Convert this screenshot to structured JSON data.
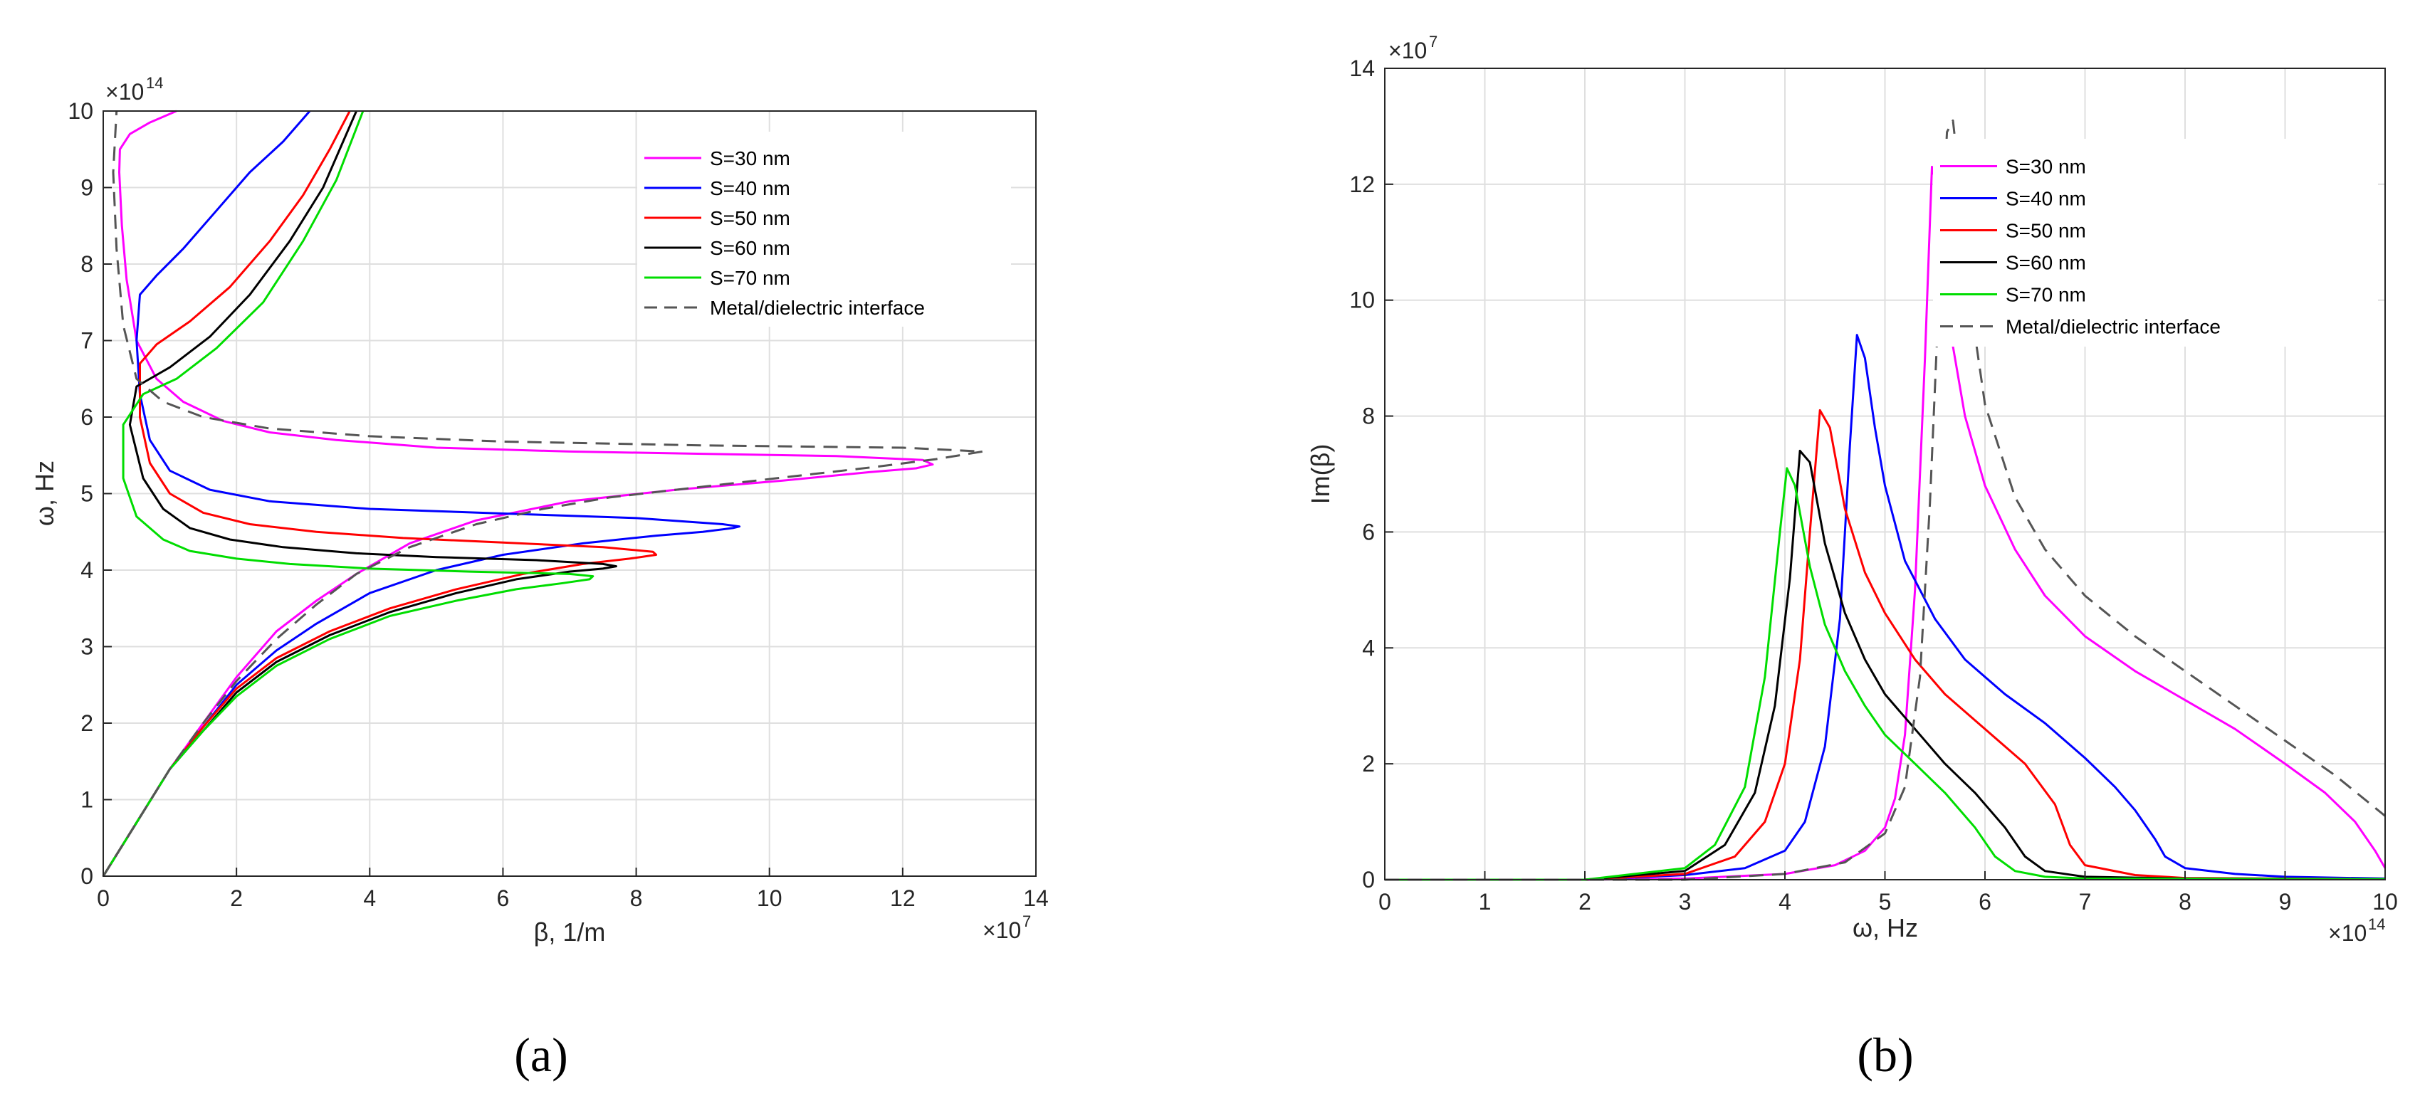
{
  "chart_data": [
    {
      "type": "line",
      "panel_label": "(a)",
      "xlabel": "β, 1/m",
      "ylabel": "ω, Hz",
      "x_exponent": "×10^7",
      "y_exponent": "×10^14",
      "xlim": [
        0,
        14
      ],
      "ylim": [
        0,
        10
      ],
      "xticks": [
        "0",
        "2",
        "4",
        "6",
        "8",
        "10",
        "12",
        "14"
      ],
      "yticks": [
        "0",
        "1",
        "2",
        "3",
        "4",
        "5",
        "6",
        "7",
        "8",
        "9",
        "10"
      ],
      "grid": true,
      "legend_position": "top-right",
      "series": [
        {
          "name": "S=30 nm",
          "color": "#ff00ff",
          "style": "solid",
          "x": [
            0,
            0.5,
            1.0,
            1.5,
            2.0,
            2.6,
            3.2,
            3.8,
            4.6,
            5.6,
            7.0,
            8.6,
            10.2,
            11.5,
            12.2,
            12.45,
            12.3,
            11.0,
            9.0,
            7.0,
            5.0,
            3.5,
            2.5,
            1.8,
            1.2,
            0.8,
            0.5,
            0.35,
            0.28,
            0.24,
            0.25,
            0.4,
            0.7,
            1.1
          ],
          "y": [
            0,
            0.7,
            1.4,
            2.0,
            2.6,
            3.2,
            3.6,
            3.95,
            4.35,
            4.65,
            4.9,
            5.05,
            5.17,
            5.28,
            5.33,
            5.38,
            5.44,
            5.49,
            5.52,
            5.55,
            5.6,
            5.7,
            5.8,
            5.95,
            6.2,
            6.5,
            7.0,
            7.8,
            8.5,
            9.2,
            9.5,
            9.7,
            9.85,
            10
          ]
        },
        {
          "name": "S=40 nm",
          "color": "#0000ff",
          "style": "solid",
          "x": [
            0,
            0.5,
            1.0,
            1.5,
            2.0,
            2.6,
            3.2,
            4.0,
            5.0,
            6.0,
            7.2,
            8.3,
            9.0,
            9.45,
            9.55,
            9.3,
            8.0,
            6.0,
            4.0,
            2.5,
            1.6,
            1.0,
            0.7,
            0.55,
            0.5,
            0.55,
            0.8,
            1.2,
            1.7,
            2.2,
            2.7,
            3.1
          ],
          "y": [
            0,
            0.7,
            1.4,
            1.95,
            2.5,
            2.95,
            3.3,
            3.7,
            4.0,
            4.2,
            4.35,
            4.45,
            4.5,
            4.55,
            4.57,
            4.6,
            4.68,
            4.74,
            4.8,
            4.9,
            5.05,
            5.3,
            5.7,
            6.3,
            7.0,
            7.6,
            7.85,
            8.2,
            8.7,
            9.2,
            9.6,
            10
          ]
        },
        {
          "name": "S=50 nm",
          "color": "#ff0000",
          "style": "solid",
          "x": [
            0,
            0.5,
            1.0,
            1.5,
            2.0,
            2.6,
            3.4,
            4.3,
            5.3,
            6.3,
            7.2,
            7.9,
            8.3,
            8.25,
            7.5,
            6.0,
            4.5,
            3.2,
            2.2,
            1.5,
            1.0,
            0.7,
            0.55,
            0.55,
            0.8,
            1.3,
            1.9,
            2.5,
            3.0,
            3.4,
            3.7
          ],
          "y": [
            0,
            0.7,
            1.4,
            1.95,
            2.45,
            2.85,
            3.2,
            3.5,
            3.75,
            3.95,
            4.08,
            4.15,
            4.2,
            4.24,
            4.3,
            4.36,
            4.42,
            4.5,
            4.6,
            4.75,
            5.0,
            5.4,
            6.0,
            6.7,
            6.95,
            7.25,
            7.7,
            8.3,
            8.9,
            9.5,
            10
          ]
        },
        {
          "name": "S=60 nm",
          "color": "#000000",
          "style": "solid",
          "x": [
            0,
            0.5,
            1.0,
            1.5,
            2.0,
            2.6,
            3.4,
            4.3,
            5.3,
            6.2,
            7.0,
            7.5,
            7.7,
            7.5,
            6.5,
            5.0,
            3.8,
            2.7,
            1.9,
            1.3,
            0.9,
            0.6,
            0.4,
            0.5,
            1.0,
            1.6,
            2.2,
            2.8,
            3.3,
            3.8
          ],
          "y": [
            0,
            0.7,
            1.4,
            1.9,
            2.4,
            2.8,
            3.15,
            3.45,
            3.7,
            3.88,
            3.98,
            4.02,
            4.05,
            4.08,
            4.13,
            4.17,
            4.22,
            4.3,
            4.4,
            4.55,
            4.8,
            5.2,
            5.9,
            6.4,
            6.65,
            7.05,
            7.6,
            8.3,
            9.0,
            10
          ]
        },
        {
          "name": "S=70 nm",
          "color": "#00dd00",
          "style": "solid",
          "x": [
            0,
            0.5,
            1.0,
            1.5,
            2.0,
            2.6,
            3.4,
            4.3,
            5.3,
            6.2,
            6.9,
            7.3,
            7.35,
            7.0,
            5.5,
            4.0,
            2.8,
            2.0,
            1.3,
            0.9,
            0.5,
            0.3,
            0.3,
            0.6,
            1.1,
            1.7,
            2.4,
            3.0,
            3.5,
            3.9
          ],
          "y": [
            0,
            0.7,
            1.4,
            1.9,
            2.35,
            2.75,
            3.1,
            3.4,
            3.6,
            3.75,
            3.83,
            3.88,
            3.92,
            3.95,
            3.98,
            4.02,
            4.08,
            4.15,
            4.25,
            4.4,
            4.7,
            5.2,
            5.9,
            6.3,
            6.5,
            6.9,
            7.5,
            8.3,
            9.1,
            10
          ]
        },
        {
          "name": "Metal/dielectric interface",
          "color": "#555555",
          "style": "dashed",
          "x": [
            0,
            0.5,
            1.0,
            1.5,
            2.0,
            2.6,
            3.2,
            3.8,
            4.6,
            5.6,
            6.6,
            7.6,
            8.6,
            9.6,
            10.6,
            11.6,
            12.5,
            13.2,
            12.0,
            9.0,
            6.0,
            4.0,
            2.5,
            1.5,
            0.9,
            0.5,
            0.3,
            0.2,
            0.15,
            0.2
          ],
          "y": [
            0,
            0.7,
            1.4,
            2.0,
            2.55,
            3.1,
            3.55,
            3.95,
            4.3,
            4.6,
            4.8,
            4.95,
            5.05,
            5.15,
            5.25,
            5.35,
            5.45,
            5.55,
            5.6,
            5.63,
            5.68,
            5.75,
            5.85,
            6.0,
            6.2,
            6.5,
            7.2,
            8.2,
            9.2,
            10
          ]
        }
      ]
    },
    {
      "type": "line",
      "panel_label": "(b)",
      "xlabel": "ω, Hz",
      "ylabel": "Im(β)",
      "x_exponent": "×10^14",
      "y_exponent": "×10^7",
      "xlim": [
        0,
        10
      ],
      "ylim": [
        0,
        14
      ],
      "xticks": [
        "0",
        "1",
        "2",
        "3",
        "4",
        "5",
        "6",
        "7",
        "8",
        "9",
        "10"
      ],
      "yticks": [
        "0",
        "2",
        "4",
        "6",
        "8",
        "10",
        "12",
        "14"
      ],
      "grid": true,
      "legend_position": "top-right",
      "series": [
        {
          "name": "S=30 nm",
          "color": "#ff00ff",
          "style": "solid",
          "x": [
            0,
            2.0,
            3.0,
            4.0,
            4.5,
            4.8,
            5.0,
            5.1,
            5.2,
            5.3,
            5.4,
            5.47,
            5.5,
            5.6,
            5.8,
            6.0,
            6.3,
            6.6,
            7.0,
            7.5,
            8.0,
            8.5,
            9.0,
            9.4,
            9.7,
            9.9,
            10.0
          ],
          "y": [
            0,
            0,
            0.02,
            0.1,
            0.25,
            0.5,
            0.9,
            1.4,
            2.5,
            5.0,
            9.0,
            12.3,
            12.1,
            10.0,
            8.0,
            6.8,
            5.7,
            4.9,
            4.2,
            3.6,
            3.1,
            2.6,
            2.0,
            1.5,
            1.0,
            0.5,
            0.2
          ]
        },
        {
          "name": "S=40 nm",
          "color": "#0000ff",
          "style": "solid",
          "x": [
            0,
            2.0,
            3.0,
            3.6,
            4.0,
            4.2,
            4.4,
            4.55,
            4.65,
            4.72,
            4.8,
            4.9,
            5.0,
            5.2,
            5.5,
            5.8,
            6.2,
            6.6,
            7.0,
            7.3,
            7.5,
            7.7,
            7.8,
            8.0,
            8.5,
            9.0,
            10.0
          ],
          "y": [
            0,
            0,
            0.08,
            0.2,
            0.5,
            1.0,
            2.3,
            4.5,
            7.5,
            9.4,
            9.0,
            7.8,
            6.8,
            5.5,
            4.5,
            3.8,
            3.2,
            2.7,
            2.1,
            1.6,
            1.2,
            0.7,
            0.4,
            0.2,
            0.1,
            0.05,
            0.02
          ]
        },
        {
          "name": "S=50 nm",
          "color": "#ff0000",
          "style": "solid",
          "x": [
            0,
            2.0,
            3.0,
            3.5,
            3.8,
            4.0,
            4.15,
            4.25,
            4.35,
            4.45,
            4.6,
            4.8,
            5.0,
            5.3,
            5.6,
            6.0,
            6.4,
            6.7,
            6.85,
            7.0,
            7.5,
            8.0,
            10.0
          ],
          "y": [
            0,
            0,
            0.1,
            0.4,
            1.0,
            2.0,
            3.8,
            6.0,
            8.1,
            7.8,
            6.4,
            5.3,
            4.6,
            3.8,
            3.2,
            2.6,
            2.0,
            1.3,
            0.6,
            0.25,
            0.08,
            0.03,
            0.01
          ]
        },
        {
          "name": "S=60 nm",
          "color": "#000000",
          "style": "solid",
          "x": [
            0,
            2.0,
            3.0,
            3.4,
            3.7,
            3.9,
            4.05,
            4.15,
            4.25,
            4.4,
            4.6,
            4.8,
            5.0,
            5.3,
            5.6,
            5.9,
            6.2,
            6.4,
            6.6,
            7.0,
            8.0,
            10.0
          ],
          "y": [
            0,
            0,
            0.15,
            0.6,
            1.5,
            3.0,
            5.2,
            7.4,
            7.2,
            5.8,
            4.6,
            3.8,
            3.2,
            2.6,
            2.0,
            1.5,
            0.9,
            0.4,
            0.15,
            0.05,
            0.02,
            0.01
          ]
        },
        {
          "name": "S=70 nm",
          "color": "#00dd00",
          "style": "solid",
          "x": [
            0,
            2.0,
            3.0,
            3.3,
            3.6,
            3.8,
            3.95,
            4.02,
            4.1,
            4.25,
            4.4,
            4.6,
            4.8,
            5.0,
            5.3,
            5.6,
            5.9,
            6.1,
            6.3,
            6.6,
            7.0,
            10.0
          ],
          "y": [
            0,
            0,
            0.2,
            0.6,
            1.6,
            3.5,
            6.0,
            7.1,
            6.8,
            5.4,
            4.4,
            3.6,
            3.0,
            2.5,
            2.0,
            1.5,
            0.9,
            0.4,
            0.15,
            0.05,
            0.02,
            0.01
          ]
        },
        {
          "name": "Metal/dielectric interface",
          "color": "#555555",
          "style": "dashed",
          "x": [
            0,
            3.0,
            4.0,
            4.6,
            5.0,
            5.2,
            5.35,
            5.45,
            5.55,
            5.62,
            5.68,
            5.75,
            5.85,
            6.0,
            6.3,
            6.6,
            7.0,
            7.5,
            8.0,
            8.5,
            9.0,
            9.5,
            10.0
          ],
          "y": [
            0,
            0,
            0.1,
            0.3,
            0.8,
            1.6,
            3.5,
            6.5,
            10.5,
            12.9,
            13.1,
            12.0,
            10.0,
            8.2,
            6.6,
            5.7,
            4.9,
            4.2,
            3.6,
            3.0,
            2.4,
            1.8,
            1.1
          ]
        }
      ]
    }
  ]
}
